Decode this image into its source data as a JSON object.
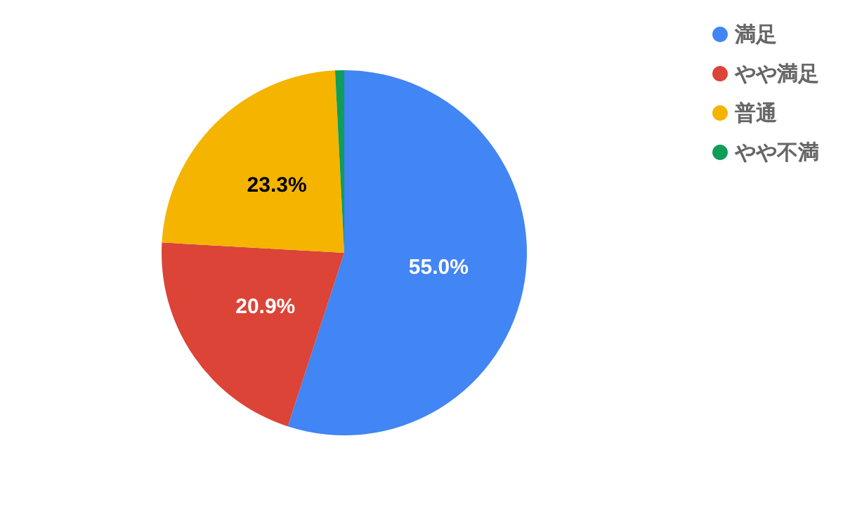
{
  "chart_data": {
    "type": "pie",
    "categories": [
      "満足",
      "やや満足",
      "普通",
      "やや不満"
    ],
    "values": [
      55.0,
      20.9,
      23.3,
      0.8
    ],
    "value_labels": [
      "55.0%",
      "20.9%",
      "23.3%",
      null
    ],
    "colors": [
      "#4285f4",
      "#db4437",
      "#f4b400",
      "#0f9d58"
    ],
    "legend": "top right"
  }
}
